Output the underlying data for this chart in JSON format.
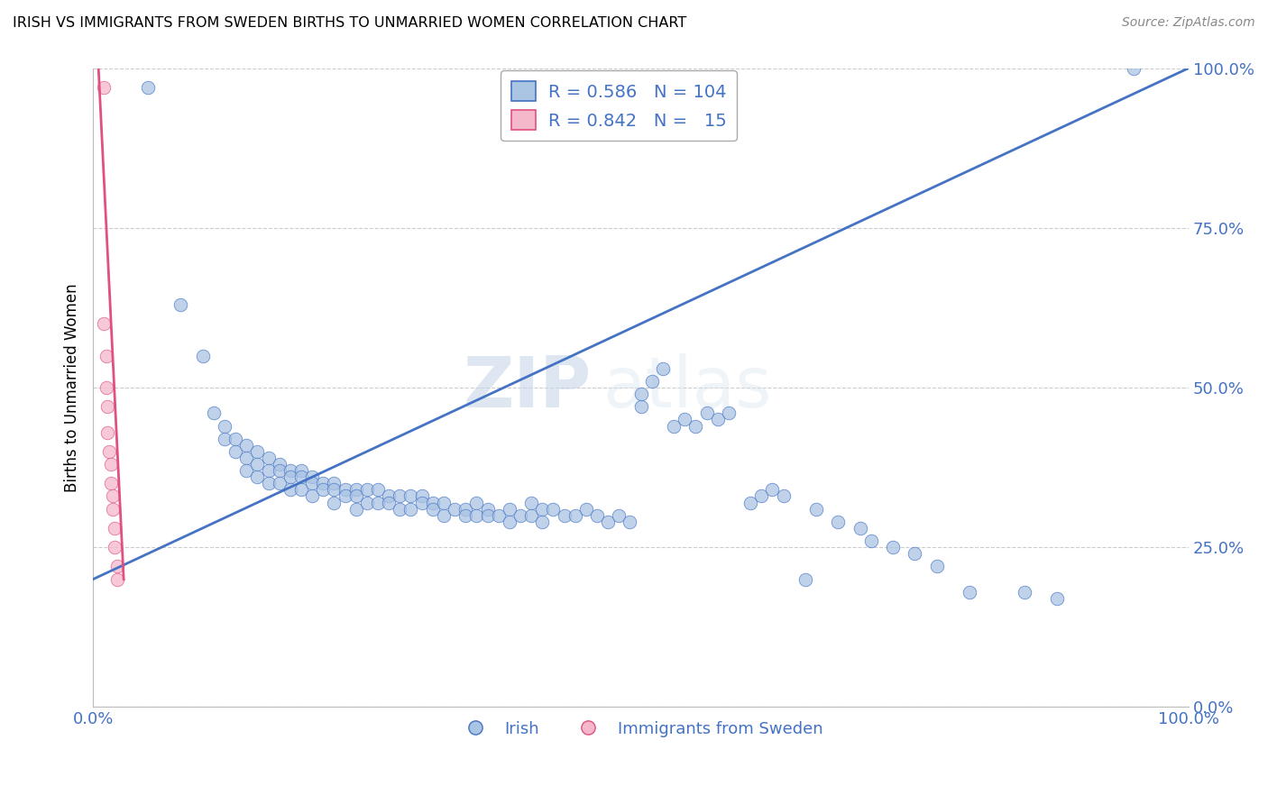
{
  "title": "IRISH VS IMMIGRANTS FROM SWEDEN BIRTHS TO UNMARRIED WOMEN CORRELATION CHART",
  "source": "Source: ZipAtlas.com",
  "ylabel": "Births to Unmarried Women",
  "xlim": [
    0.0,
    1.0
  ],
  "ylim": [
    0.0,
    1.0
  ],
  "yticks": [
    0.0,
    0.25,
    0.5,
    0.75,
    1.0
  ],
  "ytick_labels": [
    "0.0%",
    "25.0%",
    "50.0%",
    "75.0%",
    "100.0%"
  ],
  "xtick_labels": [
    "0.0%",
    "100.0%"
  ],
  "irish_color": "#aac4e3",
  "swedish_color": "#f5b8cb",
  "irish_line_color": "#4472c4",
  "swedish_line_color": "#e05080",
  "legend_text_color": "#4472c4",
  "R_irish": 0.586,
  "N_irish": 104,
  "R_swedish": 0.842,
  "N_swedish": 15,
  "watermark_zip": "ZIP",
  "watermark_atlas": "atlas",
  "irish_trend_x": [
    0.0,
    1.0
  ],
  "irish_trend_y": [
    0.2,
    1.0
  ],
  "swedish_trend_x": [
    0.005,
    0.028
  ],
  "swedish_trend_y": [
    1.0,
    0.2
  ],
  "irish_scatter_x": [
    0.05,
    0.08,
    0.1,
    0.11,
    0.12,
    0.12,
    0.13,
    0.13,
    0.14,
    0.14,
    0.14,
    0.15,
    0.15,
    0.15,
    0.16,
    0.16,
    0.16,
    0.17,
    0.17,
    0.17,
    0.18,
    0.18,
    0.18,
    0.19,
    0.19,
    0.19,
    0.2,
    0.2,
    0.2,
    0.21,
    0.21,
    0.22,
    0.22,
    0.22,
    0.23,
    0.23,
    0.24,
    0.24,
    0.24,
    0.25,
    0.25,
    0.26,
    0.26,
    0.27,
    0.27,
    0.28,
    0.28,
    0.29,
    0.29,
    0.3,
    0.3,
    0.31,
    0.31,
    0.32,
    0.32,
    0.33,
    0.34,
    0.34,
    0.35,
    0.35,
    0.36,
    0.36,
    0.37,
    0.38,
    0.38,
    0.39,
    0.4,
    0.4,
    0.41,
    0.41,
    0.42,
    0.43,
    0.44,
    0.45,
    0.46,
    0.47,
    0.48,
    0.49,
    0.5,
    0.5,
    0.51,
    0.52,
    0.53,
    0.54,
    0.55,
    0.56,
    0.57,
    0.58,
    0.6,
    0.61,
    0.62,
    0.63,
    0.65,
    0.66,
    0.68,
    0.7,
    0.71,
    0.73,
    0.75,
    0.77,
    0.8,
    0.85,
    0.88,
    0.95
  ],
  "irish_scatter_y": [
    0.97,
    0.63,
    0.55,
    0.46,
    0.44,
    0.42,
    0.42,
    0.4,
    0.41,
    0.39,
    0.37,
    0.4,
    0.38,
    0.36,
    0.39,
    0.37,
    0.35,
    0.38,
    0.37,
    0.35,
    0.37,
    0.36,
    0.34,
    0.37,
    0.36,
    0.34,
    0.36,
    0.35,
    0.33,
    0.35,
    0.34,
    0.35,
    0.34,
    0.32,
    0.34,
    0.33,
    0.34,
    0.33,
    0.31,
    0.34,
    0.32,
    0.34,
    0.32,
    0.33,
    0.32,
    0.33,
    0.31,
    0.33,
    0.31,
    0.33,
    0.32,
    0.32,
    0.31,
    0.32,
    0.3,
    0.31,
    0.31,
    0.3,
    0.32,
    0.3,
    0.31,
    0.3,
    0.3,
    0.31,
    0.29,
    0.3,
    0.32,
    0.3,
    0.31,
    0.29,
    0.31,
    0.3,
    0.3,
    0.31,
    0.3,
    0.29,
    0.3,
    0.29,
    0.47,
    0.49,
    0.51,
    0.53,
    0.44,
    0.45,
    0.44,
    0.46,
    0.45,
    0.46,
    0.32,
    0.33,
    0.34,
    0.33,
    0.2,
    0.31,
    0.29,
    0.28,
    0.26,
    0.25,
    0.24,
    0.22,
    0.18,
    0.18,
    0.17,
    1.0
  ],
  "swedish_scatter_x": [
    0.01,
    0.01,
    0.012,
    0.012,
    0.013,
    0.013,
    0.015,
    0.016,
    0.016,
    0.018,
    0.018,
    0.02,
    0.02,
    0.022,
    0.022
  ],
  "swedish_scatter_y": [
    0.97,
    0.6,
    0.55,
    0.5,
    0.47,
    0.43,
    0.4,
    0.38,
    0.35,
    0.33,
    0.31,
    0.28,
    0.25,
    0.22,
    0.2
  ]
}
